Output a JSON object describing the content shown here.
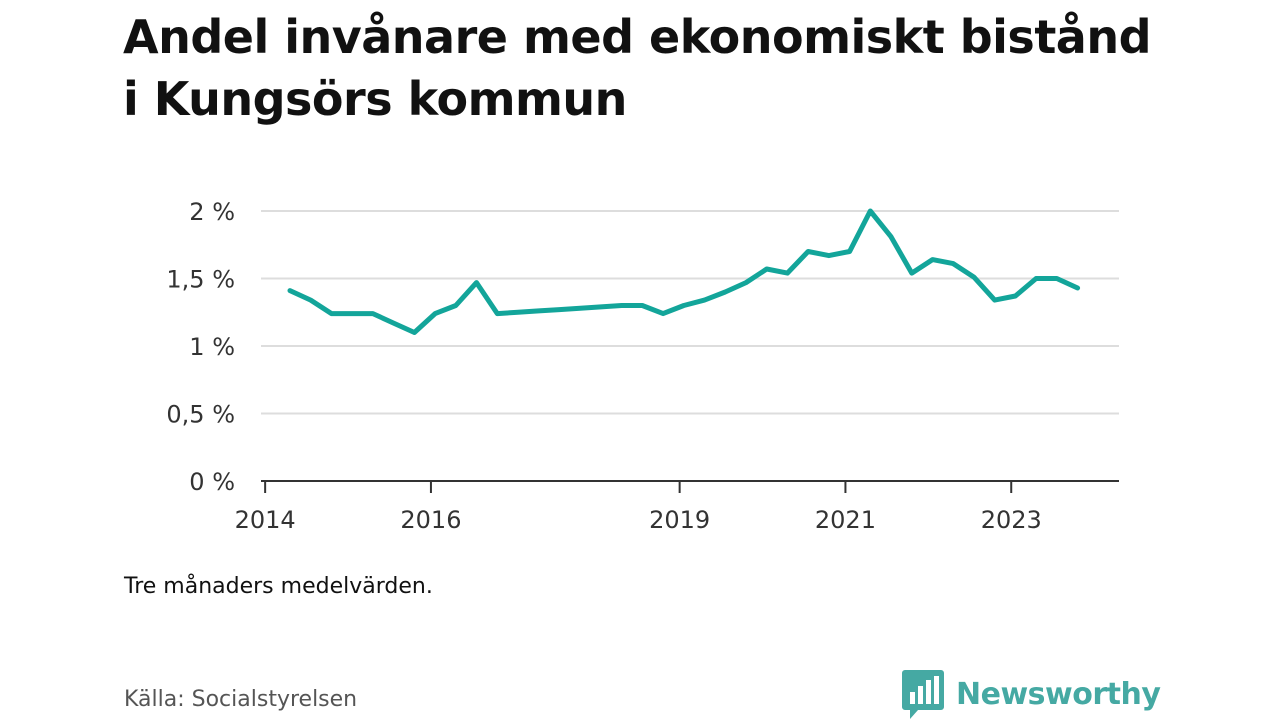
{
  "title": "Andel invånare med ekonomiskt bistånd i Kungsörs kommun",
  "note": "Tre månaders medelvärden.",
  "source": "Källa: Socialstyrelsen",
  "brand": {
    "name": "Newsworthy",
    "icon": "bar-chart-speech-bubble-icon",
    "color": "#45a9a3"
  },
  "colors": {
    "line": "#13a59a",
    "grid": "#dddddd",
    "axis": "#333333"
  },
  "chart_data": {
    "type": "line",
    "title": "Andel invånare med ekonomiskt bistånd i Kungsörs kommun",
    "xlabel": "",
    "ylabel": "",
    "x_ticks": [
      2014,
      2016,
      2019,
      2021,
      2023
    ],
    "y_ticks": [
      {
        "value": 0,
        "label": "0 %"
      },
      {
        "value": 0.5,
        "label": "0,5 %"
      },
      {
        "value": 1,
        "label": "1 %"
      },
      {
        "value": 1.5,
        "label": "1,5 %"
      },
      {
        "value": 2,
        "label": "2 %"
      }
    ],
    "xlim": [
      2013.95,
      2024.3
    ],
    "ylim": [
      0,
      2
    ],
    "grid": true,
    "legend": "none",
    "series": [
      {
        "values": [
          {
            "x": 2014.3,
            "y": 1.41
          },
          {
            "x": 2014.55,
            "y": 1.34
          },
          {
            "x": 2014.8,
            "y": 1.24
          },
          {
            "x": 2015.05,
            "y": 1.24
          },
          {
            "x": 2015.3,
            "y": 1.24
          },
          {
            "x": 2015.55,
            "y": 1.17
          },
          {
            "x": 2015.8,
            "y": 1.1
          },
          {
            "x": 2016.05,
            "y": 1.24
          },
          {
            "x": 2016.3,
            "y": 1.3
          },
          {
            "x": 2016.55,
            "y": 1.47
          },
          {
            "x": 2016.8,
            "y": 1.24
          },
          {
            "x": 2017.05,
            "y": 1.25
          },
          {
            "x": 2017.3,
            "y": 1.26
          },
          {
            "x": 2017.55,
            "y": 1.27
          },
          {
            "x": 2017.8,
            "y": 1.28
          },
          {
            "x": 2018.05,
            "y": 1.29
          },
          {
            "x": 2018.3,
            "y": 1.3
          },
          {
            "x": 2018.55,
            "y": 1.3
          },
          {
            "x": 2018.8,
            "y": 1.24
          },
          {
            "x": 2019.05,
            "y": 1.3
          },
          {
            "x": 2019.3,
            "y": 1.34
          },
          {
            "x": 2019.55,
            "y": 1.4
          },
          {
            "x": 2019.8,
            "y": 1.47
          },
          {
            "x": 2020.05,
            "y": 1.57
          },
          {
            "x": 2020.3,
            "y": 1.54
          },
          {
            "x": 2020.55,
            "y": 1.7
          },
          {
            "x": 2020.8,
            "y": 1.67
          },
          {
            "x": 2021.05,
            "y": 1.7
          },
          {
            "x": 2021.3,
            "y": 2.0
          },
          {
            "x": 2021.55,
            "y": 1.81
          },
          {
            "x": 2021.8,
            "y": 1.54
          },
          {
            "x": 2022.05,
            "y": 1.64
          },
          {
            "x": 2022.3,
            "y": 1.61
          },
          {
            "x": 2022.55,
            "y": 1.51
          },
          {
            "x": 2022.8,
            "y": 1.34
          },
          {
            "x": 2023.05,
            "y": 1.37
          },
          {
            "x": 2023.3,
            "y": 1.5
          },
          {
            "x": 2023.55,
            "y": 1.5
          },
          {
            "x": 2023.8,
            "y": 1.43
          }
        ]
      }
    ]
  }
}
